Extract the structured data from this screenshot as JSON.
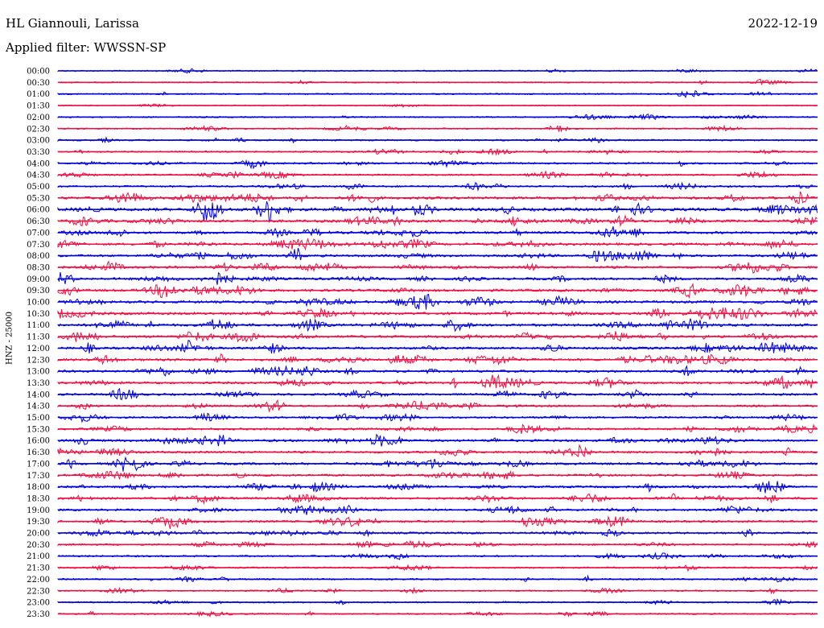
{
  "header": {
    "station": "HL Giannouli, Larissa",
    "date": "2022-12-19",
    "filter": "Applied filter: WWSSN-SP"
  },
  "channel_label": "HNZ - 25000",
  "colors": {
    "even_rows": "#0000dd",
    "odd_rows": "#ee1144"
  },
  "chart_data": {
    "type": "line",
    "chart_kind": "helicorder (seismogram drum plot)",
    "row_labels": [
      "00:00",
      "00:30",
      "01:00",
      "01:30",
      "02:00",
      "02:30",
      "03:00",
      "03:30",
      "04:00",
      "04:30",
      "05:00",
      "05:30",
      "06:00",
      "06:30",
      "07:00",
      "07:30",
      "08:00",
      "08:30",
      "09:00",
      "09:30",
      "10:00",
      "10:30",
      "11:00",
      "11:30",
      "12:00",
      "12:30",
      "13:00",
      "13:30",
      "14:00",
      "14:30",
      "15:00",
      "15:30",
      "16:00",
      "16:30",
      "17:00",
      "17:30",
      "18:00",
      "18:30",
      "19:00",
      "19:30",
      "20:00",
      "20:30",
      "21:00",
      "21:30",
      "22:00",
      "22:30",
      "23:00",
      "23:30"
    ],
    "activity_level": [
      0.15,
      0.15,
      0.2,
      0.05,
      0.2,
      0.25,
      0.3,
      0.3,
      0.4,
      0.35,
      0.4,
      0.8,
      1.0,
      0.8,
      0.7,
      0.7,
      0.65,
      0.7,
      0.7,
      0.75,
      0.75,
      0.8,
      0.8,
      0.75,
      0.7,
      0.7,
      0.7,
      0.65,
      0.55,
      0.5,
      0.5,
      0.55,
      0.65,
      0.6,
      0.65,
      0.55,
      0.6,
      0.65,
      0.55,
      0.55,
      0.5,
      0.4,
      0.35,
      0.3,
      0.3,
      0.25,
      0.25,
      0.25
    ],
    "legend": "none",
    "grid": false
  }
}
